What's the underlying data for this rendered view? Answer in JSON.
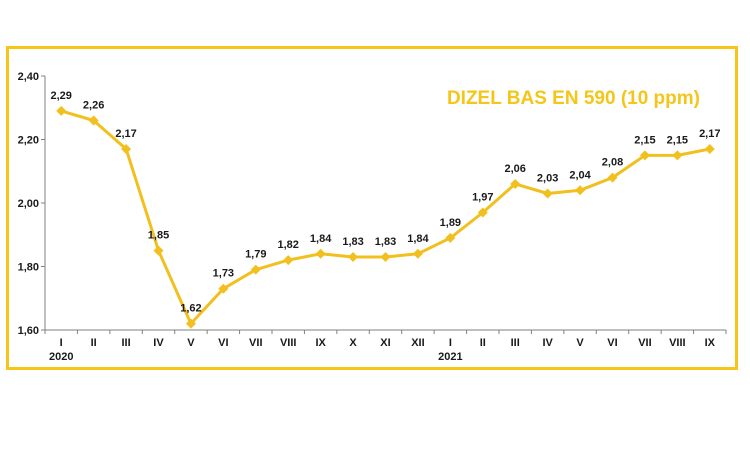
{
  "chart_data": {
    "type": "line",
    "title": "DIZEL BAS EN 590 (10 ppm)",
    "categories": [
      "I",
      "II",
      "III",
      "IV",
      "V",
      "VI",
      "VII",
      "VIII",
      "IX",
      "X",
      "XI",
      "XII",
      "I",
      "II",
      "III",
      "IV",
      "V",
      "VI",
      "VII",
      "VIII",
      "IX"
    ],
    "year_labels": [
      {
        "index": 0,
        "label": "2020"
      },
      {
        "index": 12,
        "label": "2021"
      }
    ],
    "series": [
      {
        "values": [
          2.29,
          2.26,
          2.17,
          1.85,
          1.62,
          1.73,
          1.79,
          1.82,
          1.84,
          1.83,
          1.83,
          1.84,
          1.89,
          1.97,
          2.06,
          2.03,
          2.04,
          2.08,
          2.15,
          2.15,
          2.17
        ]
      }
    ],
    "data_labels": [
      "2,29",
      "2,26",
      "2,17",
      "1,85",
      "1,62",
      "1,73",
      "1,79",
      "1,82",
      "1,84",
      "1,83",
      "1,83",
      "1,84",
      "1,89",
      "1,97",
      "2,06",
      "2,03",
      "2,04",
      "2,08",
      "2,15",
      "2,15",
      "2,17"
    ],
    "ylim": [
      1.6,
      2.4
    ],
    "yticks": [
      1.6,
      1.8,
      2.0,
      2.2,
      2.4
    ],
    "ytick_labels": [
      "1,60",
      "1,80",
      "2,00",
      "2,20",
      "2,40"
    ],
    "xlabel": "",
    "ylabel": "",
    "grid": false,
    "line_color": "#f2c01e",
    "title_color": "#f5c518",
    "frame_color": "#f5c518"
  }
}
